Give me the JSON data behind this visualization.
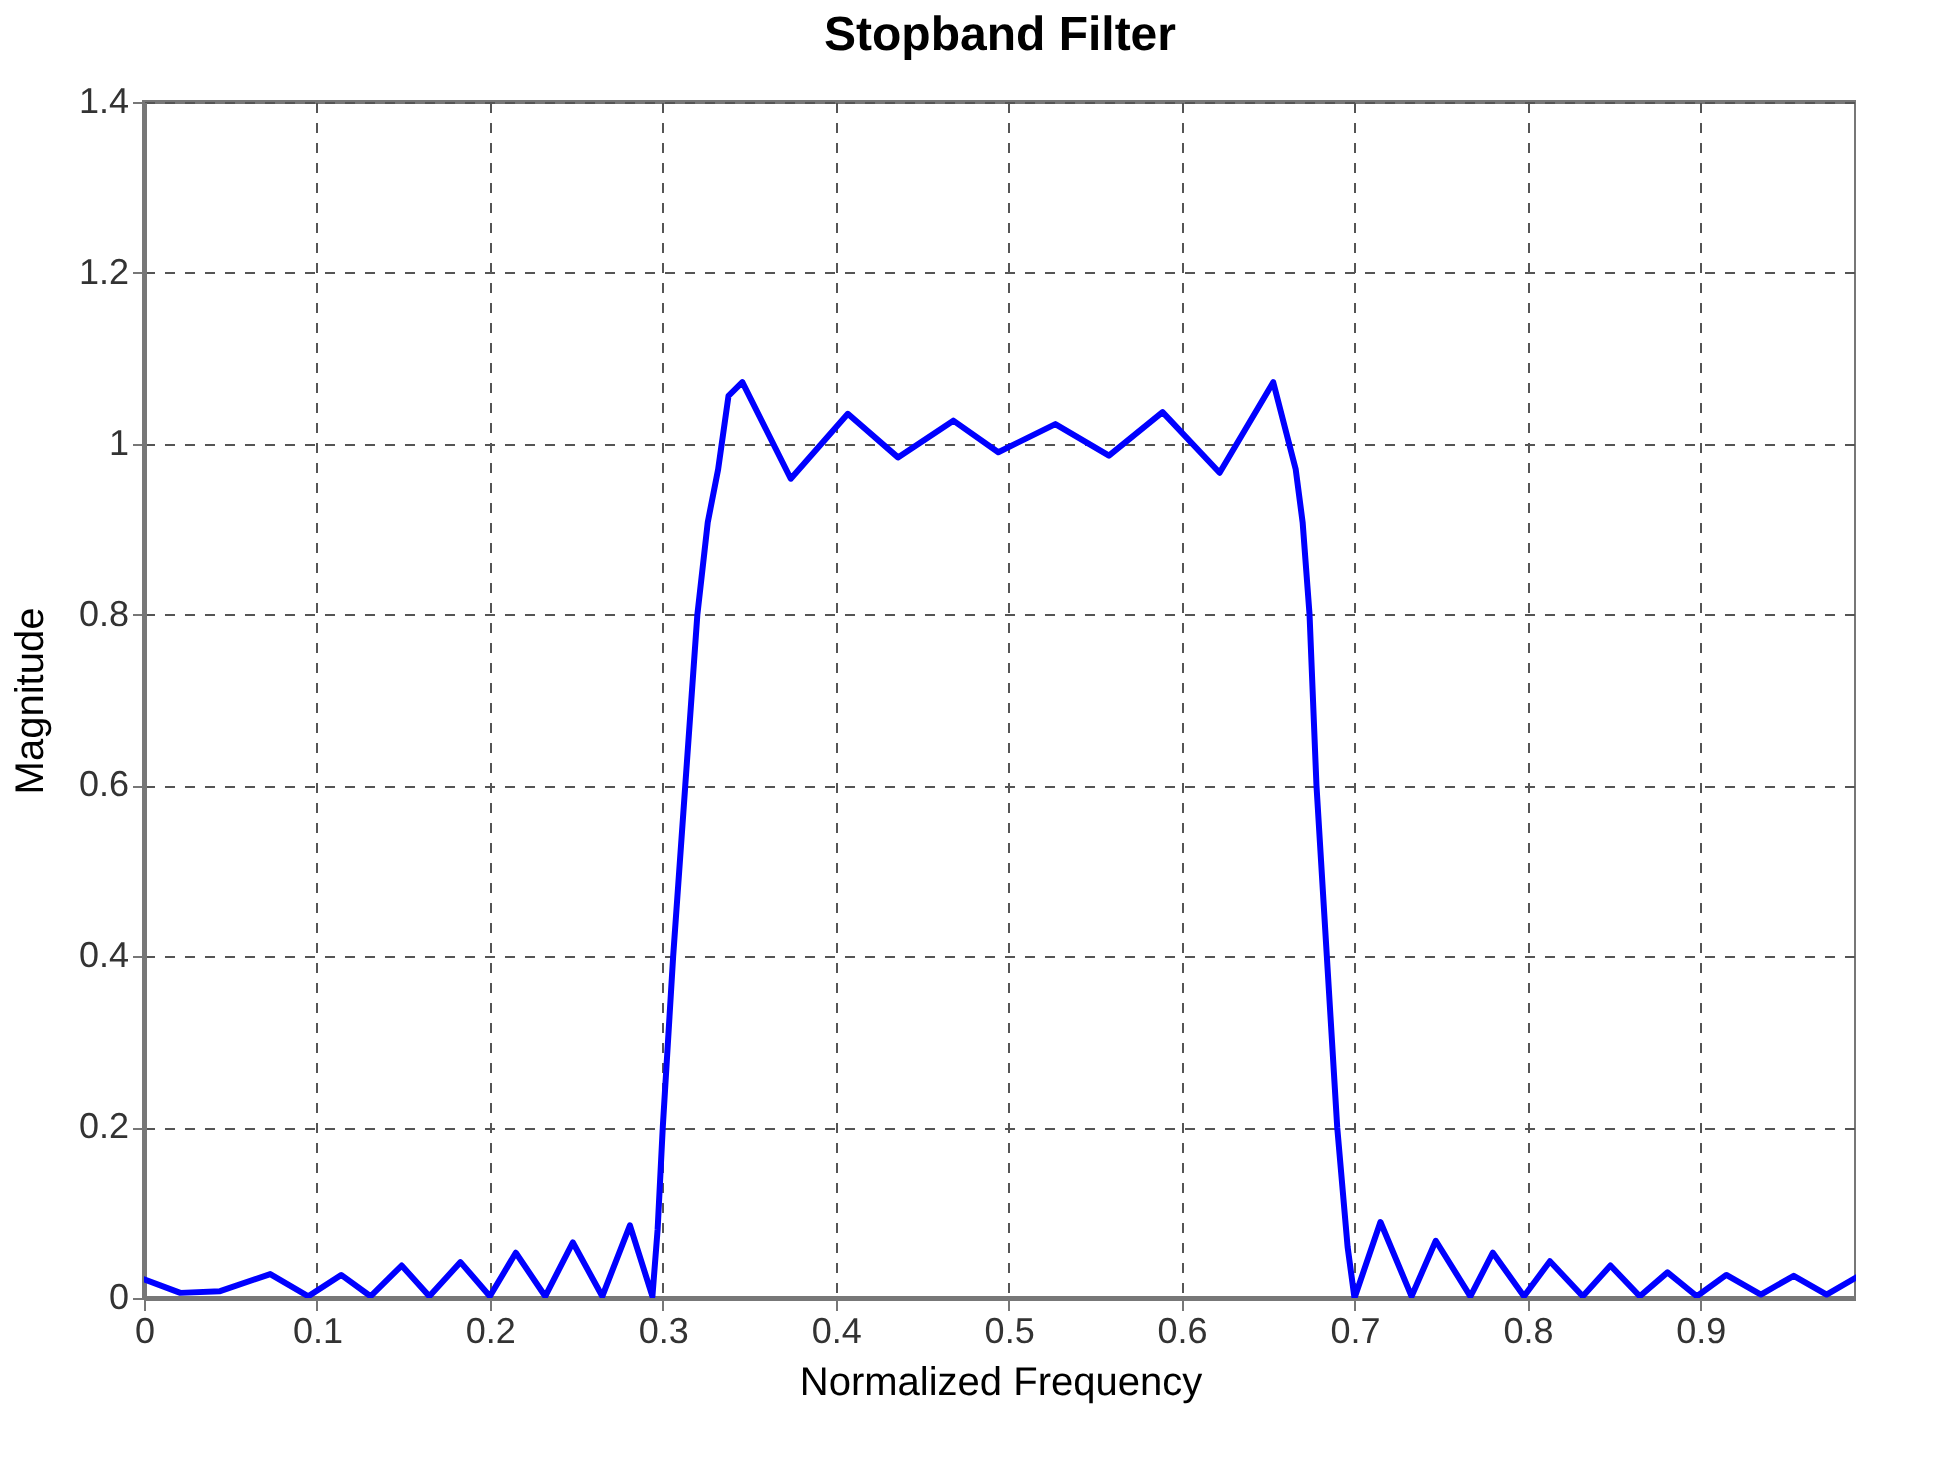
{
  "chart_data": {
    "type": "line",
    "title": "Stopband Filter",
    "xlabel": "Normalized Frequency",
    "ylabel": "Magnitude",
    "xlim": [
      0,
      0.99
    ],
    "ylim": [
      0,
      1.4
    ],
    "xticks": [
      0,
      0.1,
      0.2,
      0.3,
      0.4,
      0.5,
      0.6,
      0.7,
      0.8,
      0.9
    ],
    "yticks": [
      0,
      0.2,
      0.4,
      0.6,
      0.8,
      1,
      1.2,
      1.4
    ],
    "grid": true,
    "line_style": "solid",
    "marker": "none",
    "series": [
      {
        "color": "#0000ff",
        "x": [
          0,
          0.021,
          0.044,
          0.073,
          0.095,
          0.114,
          0.131,
          0.149,
          0.165,
          0.183,
          0.2,
          0.215,
          0.232,
          0.248,
          0.265,
          0.281,
          0.294,
          0.297,
          0.3,
          0.306,
          0.313,
          0.32,
          0.326,
          0.332,
          0.338,
          0.346,
          0.374,
          0.407,
          0.436,
          0.468,
          0.494,
          0.527,
          0.558,
          0.589,
          0.622,
          0.653,
          0.666,
          0.67,
          0.674,
          0.678,
          0.684,
          0.69,
          0.696,
          0.7,
          0.715,
          0.733,
          0.747,
          0.767,
          0.78,
          0.798,
          0.813,
          0.832,
          0.848,
          0.865,
          0.881,
          0.898,
          0.915,
          0.935,
          0.954,
          0.973,
          0.99
        ],
        "values": [
          0.022,
          0.006,
          0.008,
          0.028,
          0.002,
          0.027,
          0.002,
          0.038,
          0.002,
          0.042,
          0.002,
          0.053,
          0.002,
          0.065,
          0.002,
          0.085,
          0.002,
          0.08,
          0.2,
          0.4,
          0.6,
          0.8,
          0.908,
          0.97,
          1.056,
          1.072,
          0.959,
          1.035,
          0.984,
          1.027,
          0.99,
          1.023,
          0.986,
          1.037,
          0.966,
          1.072,
          0.97,
          0.908,
          0.8,
          0.6,
          0.4,
          0.2,
          0.06,
          0,
          0.089,
          0.002,
          0.067,
          0.002,
          0.053,
          0.002,
          0.043,
          0.002,
          0.038,
          0.002,
          0.03,
          0.002,
          0.027,
          0.004,
          0.026,
          0.004,
          0.024
        ]
      }
    ]
  }
}
